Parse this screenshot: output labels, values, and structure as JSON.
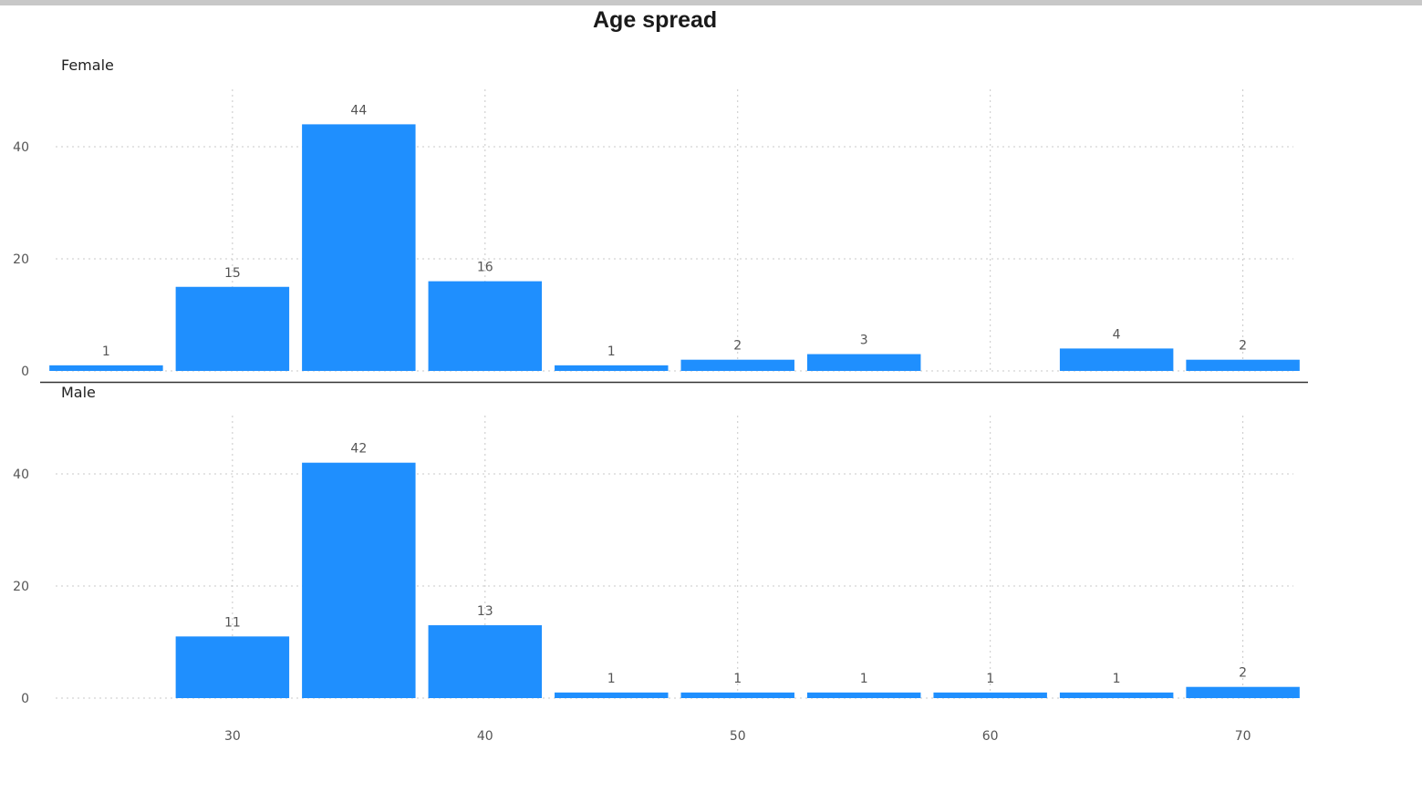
{
  "chart_data": {
    "type": "bar",
    "title": "Age spread",
    "xlabel": "",
    "ylabel": "",
    "x_ticks": [
      30,
      40,
      50,
      60,
      70
    ],
    "y_ticks": [
      0,
      20,
      40
    ],
    "ylim": [
      0,
      48
    ],
    "xlim": [
      23,
      72
    ],
    "bin_width": 5,
    "grid": true,
    "bar_color": "#1f8ffe",
    "panels": [
      {
        "label": "Female",
        "bins": [
          25,
          30,
          35,
          40,
          45,
          50,
          55,
          60,
          65,
          70
        ],
        "values": [
          1,
          15,
          44,
          16,
          1,
          2,
          3,
          0,
          4,
          2
        ]
      },
      {
        "label": "Male",
        "bins": [
          25,
          30,
          35,
          40,
          45,
          50,
          55,
          60,
          65,
          70
        ],
        "values": [
          0,
          11,
          42,
          13,
          1,
          1,
          1,
          1,
          1,
          2
        ]
      }
    ]
  }
}
